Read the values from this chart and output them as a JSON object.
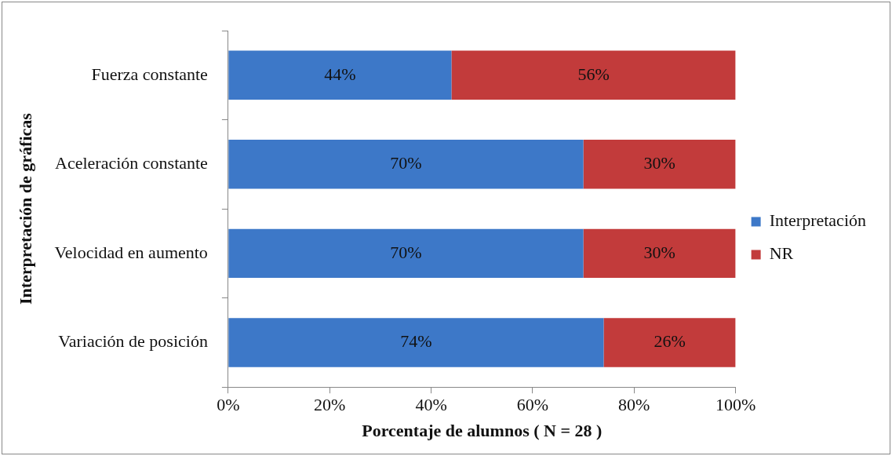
{
  "chart_data": {
    "type": "bar",
    "orientation": "horizontal",
    "stacked": true,
    "xlabel": "Porcentaje de alumnos ( N = 28 )",
    "ylabel": "Interpretación de gráficas",
    "categories": [
      "Fuerza constante",
      "Aceleración constante",
      "Velocidad en aumento",
      "Variación de posición"
    ],
    "series": [
      {
        "name": "Interpretación",
        "color": "#3d78c8",
        "values": [
          44,
          70,
          70,
          74
        ],
        "value_labels": [
          "44%",
          "70%",
          "70%",
          "74%"
        ]
      },
      {
        "name": "NR",
        "color": "#c23b3b",
        "values": [
          56,
          30,
          30,
          26
        ],
        "value_labels": [
          "56%",
          "30%",
          "30%",
          "26%"
        ]
      }
    ],
    "xlim": [
      0,
      100
    ],
    "xticks": [
      {
        "value": 0,
        "label": "0%"
      },
      {
        "value": 20,
        "label": "20%"
      },
      {
        "value": 40,
        "label": "40%"
      },
      {
        "value": 60,
        "label": "60%"
      },
      {
        "value": 80,
        "label": "80%"
      },
      {
        "value": 100,
        "label": "100%"
      }
    ],
    "grid": false,
    "legend": "right"
  }
}
